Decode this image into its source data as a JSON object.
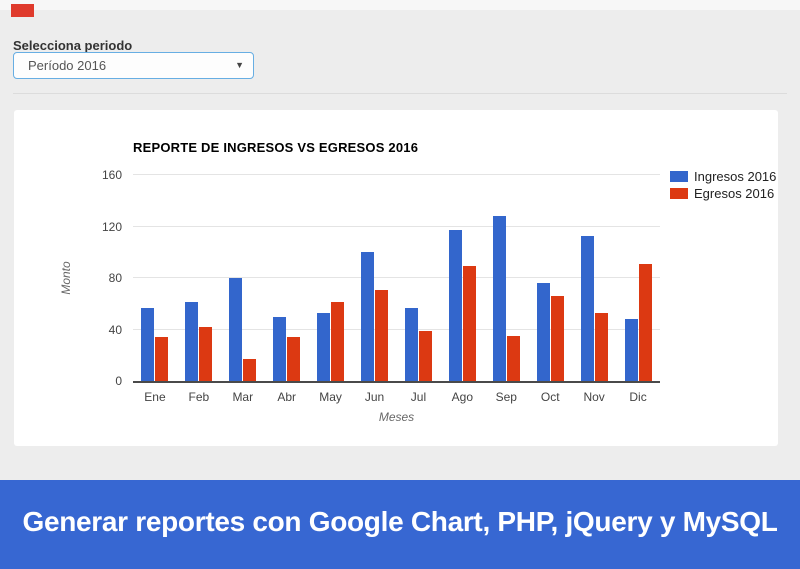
{
  "header": {
    "label": "Selecciona periodo",
    "select_value": "Período 2016",
    "select_border_color": "#67aee3",
    "marker_color": "#df3a2c"
  },
  "chart_data": {
    "type": "bar",
    "title": "REPORTE DE INGRESOS VS EGRESOS 2016",
    "xlabel": "Meses",
    "ylabel": "Monto",
    "categories": [
      "Ene",
      "Feb",
      "Mar",
      "Abr",
      "May",
      "Jun",
      "Jul",
      "Ago",
      "Sep",
      "Oct",
      "Nov",
      "Dic"
    ],
    "series": [
      {
        "name": "Ingresos 2016",
        "color": "#3366cc",
        "values": [
          57,
          61,
          80,
          50,
          53,
          100,
          57,
          117,
          128,
          76,
          113,
          48
        ]
      },
      {
        "name": "Egresos 2016",
        "color": "#dc3912",
        "values": [
          34,
          42,
          17,
          34,
          61,
          71,
          39,
          89,
          35,
          66,
          53,
          91
        ]
      }
    ],
    "ylim": [
      0,
      160
    ],
    "yticks": [
      0,
      40,
      80,
      120,
      160
    ],
    "grid": true,
    "legend_position": "right-top"
  },
  "footer": {
    "text": "Generar reportes con Google Chart, PHP, jQuery y MySQL",
    "bg_color": "#3767d2"
  }
}
